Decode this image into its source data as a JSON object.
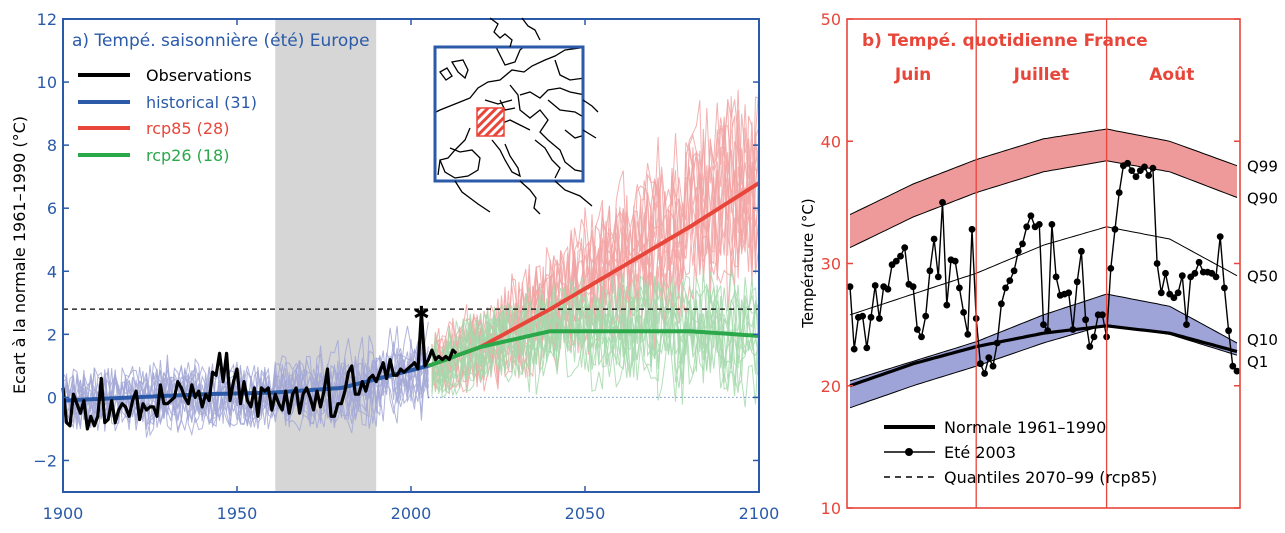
{
  "chart_data": [
    {
      "type": "line",
      "title": "a) Tempé. saisonnière (été) Europe",
      "ylabel": "Ecart à la normale 1961–1990 (°C)",
      "xlabel": "",
      "xlim": [
        1900,
        2100
      ],
      "ylim": [
        -3,
        12
      ],
      "x_ticks": [
        "1900",
        "1950",
        "2000",
        "2050",
        "2100"
      ],
      "y_ticks": [
        "−2",
        "0",
        "2",
        "4",
        "6",
        "8",
        "10",
        "12"
      ],
      "x_tick_values": [
        1900,
        1950,
        2000,
        2050,
        2100
      ],
      "y_tick_values": [
        -2,
        0,
        2,
        4,
        6,
        8,
        10,
        12
      ],
      "shaded_period": [
        1961,
        1990
      ],
      "reference_line": 2.8,
      "star_marker": {
        "x": 2003,
        "y": 2.7
      },
      "legend": {
        "position": "top-left",
        "entries": [
          {
            "label": "Observations",
            "color": "#000000"
          },
          {
            "label": "historical (31)",
            "color": "#2a5aa8"
          },
          {
            "label": "rcp85 (28)",
            "color": "#e8463a"
          },
          {
            "label": "rcp26 (18)",
            "color": "#2aa84a"
          }
        ]
      },
      "inset": "europe-map",
      "series": [
        {
          "name": "historical (31)",
          "color": "#2a5aa8",
          "band_color": "#a3a8d6",
          "x": [
            1900,
            1920,
            1940,
            1960,
            1980,
            2005
          ],
          "values": [
            -0.1,
            0.0,
            0.1,
            0.15,
            0.3,
            1.0
          ]
        },
        {
          "name": "rcp85 (28)",
          "color": "#e8463a",
          "band_color": "#f2a5a5",
          "x": [
            2005,
            2020,
            2040,
            2060,
            2080,
            2100
          ],
          "values": [
            1.0,
            1.6,
            2.8,
            4.1,
            5.4,
            6.8
          ]
        },
        {
          "name": "rcp26 (18)",
          "color": "#2aa84a",
          "band_color": "#a6d9ad",
          "x": [
            2005,
            2020,
            2040,
            2060,
            2080,
            2100
          ],
          "values": [
            1.0,
            1.6,
            2.1,
            2.1,
            2.1,
            1.95
          ]
        },
        {
          "name": "Observations",
          "color": "#000000",
          "x": [
            1900,
            1901,
            1902,
            1903,
            1904,
            1905,
            1906,
            1907,
            1908,
            1909,
            1910,
            1911,
            1912,
            1913,
            1914,
            1915,
            1916,
            1917,
            1918,
            1919,
            1920,
            1921,
            1922,
            1923,
            1924,
            1925,
            1926,
            1927,
            1928,
            1929,
            1930,
            1931,
            1932,
            1933,
            1934,
            1935,
            1936,
            1937,
            1938,
            1939,
            1940,
            1941,
            1942,
            1943,
            1944,
            1945,
            1946,
            1947,
            1948,
            1949,
            1950,
            1951,
            1952,
            1953,
            1954,
            1955,
            1956,
            1957,
            1958,
            1959,
            1960,
            1961,
            1962,
            1963,
            1964,
            1965,
            1966,
            1967,
            1968,
            1969,
            1970,
            1971,
            1972,
            1973,
            1974,
            1975,
            1976,
            1977,
            1978,
            1979,
            1980,
            1981,
            1982,
            1983,
            1984,
            1985,
            1986,
            1987,
            1988,
            1989,
            1990,
            1991,
            1992,
            1993,
            1994,
            1995,
            1996,
            1997,
            1998,
            1999,
            2000,
            2001,
            2002,
            2003,
            2004,
            2005,
            2006,
            2007,
            2008,
            2009,
            2010,
            2011,
            2012,
            2013
          ],
          "values": [
            0.3,
            -0.8,
            -0.9,
            0.1,
            -0.2,
            -0.5,
            -0.1,
            -1.0,
            -0.6,
            -0.9,
            -0.6,
            0.6,
            -0.8,
            -0.7,
            -0.1,
            -0.8,
            -0.4,
            -0.2,
            -0.3,
            -0.6,
            -0.1,
            0.2,
            -0.7,
            -0.2,
            -0.4,
            -0.3,
            -0.3,
            -0.6,
            0.4,
            -0.2,
            -0.2,
            -0.1,
            0.0,
            0.5,
            0.3,
            0.0,
            -0.2,
            0.4,
            0.0,
            0.2,
            -0.3,
            0.1,
            -0.1,
            0.8,
            0.7,
            1.4,
            0.5,
            1.4,
            -0.1,
            0.5,
            0.9,
            -0.2,
            0.5,
            -0.1,
            -0.3,
            0.3,
            -0.6,
            0.3,
            0.2,
            0.3,
            -0.4,
            0.1,
            -0.2,
            -0.4,
            0.2,
            -0.5,
            0.1,
            0.3,
            -0.5,
            0.1,
            0.3,
            0.0,
            -0.4,
            0.2,
            -0.3,
            0.2,
            0.9,
            -0.6,
            -0.6,
            -0.2,
            -0.2,
            0.2,
            0.8,
            1.0,
            0.1,
            0.1,
            0.5,
            0.2,
            0.6,
            0.7,
            0.5,
            0.8,
            1.1,
            0.6,
            1.2,
            0.7,
            0.7,
            0.9,
            0.8,
            0.9,
            1.0,
            1.1,
            0.9,
            2.7,
            1.0,
            1.2,
            1.5,
            1.2,
            1.3,
            1.2,
            1.3,
            1.2,
            1.5,
            1.4
          ]
        }
      ]
    },
    {
      "type": "line",
      "title": "b) Tempé. quotidienne France",
      "ylabel": "Température (°C)",
      "xlabel": "",
      "xlim": [
        0,
        92
      ],
      "ylim": [
        10,
        50
      ],
      "y_ticks": [
        "10",
        "20",
        "30",
        "40",
        "50"
      ],
      "y_tick_values": [
        10,
        20,
        30,
        40,
        50
      ],
      "months": [
        "Juin",
        "Juillet",
        "Août"
      ],
      "month_bounds": [
        0,
        30,
        61,
        92
      ],
      "quantile_labels": [
        "Q99",
        "Q90",
        "Q50",
        "Q10",
        "Q1"
      ],
      "legend": {
        "position": "bottom-left",
        "entries": [
          {
            "label": "Normale 1961–1990",
            "style": "thick-line"
          },
          {
            "label": "Eté 2003",
            "style": "line-dots"
          },
          {
            "label": "Quantiles 2070–99 (rcp85)",
            "style": "dashed"
          }
        ]
      },
      "series": [
        {
          "name": "Q99",
          "x": [
            0,
            15,
            30,
            46,
            61,
            76,
            92
          ],
          "values": [
            34.0,
            36.5,
            38.5,
            40.2,
            41.0,
            40.0,
            38.0
          ]
        },
        {
          "name": "Q90",
          "x": [
            0,
            15,
            30,
            46,
            61,
            76,
            92
          ],
          "values": [
            31.3,
            33.8,
            35.8,
            37.5,
            38.4,
            37.5,
            35.4
          ]
        },
        {
          "name": "Q50",
          "x": [
            0,
            15,
            30,
            46,
            61,
            76,
            92
          ],
          "values": [
            25.8,
            27.5,
            29.2,
            31.5,
            33.0,
            32.0,
            29.0
          ]
        },
        {
          "name": "Q10",
          "x": [
            0,
            15,
            30,
            46,
            61,
            76,
            92
          ],
          "values": [
            20.4,
            22.0,
            23.6,
            25.8,
            27.5,
            26.5,
            23.5
          ]
        },
        {
          "name": "Q1",
          "x": [
            0,
            15,
            30,
            46,
            61,
            76,
            92
          ],
          "values": [
            18.2,
            20.0,
            21.6,
            23.5,
            25.0,
            24.2,
            22.5
          ]
        },
        {
          "name": "Normale 1961–1990",
          "x": [
            0,
            15,
            30,
            46,
            61,
            76,
            92
          ],
          "values": [
            20.0,
            21.8,
            23.2,
            24.3,
            24.9,
            24.3,
            22.8
          ]
        },
        {
          "name": "Eté 2003",
          "x": [
            0,
            1,
            2,
            3,
            4,
            5,
            6,
            7,
            8,
            9,
            10,
            11,
            12,
            13,
            14,
            15,
            16,
            17,
            18,
            19,
            20,
            21,
            22,
            23,
            24,
            25,
            26,
            27,
            28,
            29,
            30,
            31,
            32,
            33,
            34,
            35,
            36,
            37,
            38,
            39,
            40,
            41,
            42,
            43,
            44,
            45,
            46,
            47,
            48,
            49,
            50,
            51,
            52,
            53,
            54,
            55,
            56,
            57,
            58,
            59,
            60,
            61,
            62,
            63,
            64,
            65,
            66,
            67,
            68,
            69,
            70,
            71,
            72,
            73,
            74,
            75,
            76,
            77,
            78,
            79,
            80,
            81,
            82,
            83,
            84,
            85,
            86,
            87,
            88,
            89,
            90,
            91,
            92
          ],
          "values": [
            28.1,
            23.0,
            25.6,
            25.7,
            23.1,
            25.6,
            28.2,
            25.5,
            28.1,
            27.9,
            29.9,
            30.2,
            30.6,
            31.3,
            28.3,
            28.1,
            24.6,
            24.0,
            25.7,
            29.4,
            32.0,
            28.9,
            35.0,
            26.6,
            30.3,
            30.2,
            28.0,
            26.0,
            24.2,
            32.8,
            25.5,
            21.8,
            21.0,
            22.3,
            21.6,
            23.5,
            26.7,
            28.0,
            28.6,
            29.4,
            31.0,
            31.6,
            33.0,
            33.9,
            33.0,
            33.2,
            25.0,
            24.5,
            33.2,
            28.9,
            27.4,
            27.5,
            27.6,
            24.6,
            28.5,
            31.0,
            25.4,
            23.2,
            24.0,
            25.8,
            25.8,
            24.0,
            29.6,
            32.8,
            35.8,
            38.0,
            38.2,
            37.6,
            37.1,
            37.6,
            37.9,
            37.2,
            37.8,
            30.0,
            27.6,
            29.2,
            27.5,
            27.2,
            27.6,
            29.0,
            25.0,
            28.9,
            29.2,
            30.1,
            29.3,
            29.3,
            29.2,
            28.9,
            32.2,
            28.0,
            24.5,
            21.6,
            21.2
          ]
        }
      ]
    }
  ]
}
